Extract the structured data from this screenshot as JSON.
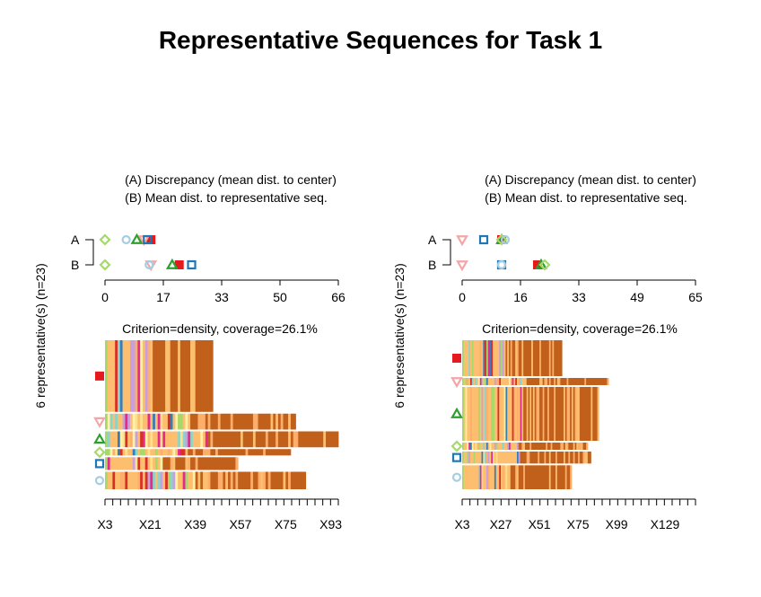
{
  "title": "Representative Sequences for Task 1",
  "chart_data": [
    {
      "type": "sequence_index",
      "legend_lines": [
        "(A) Discrepancy (mean dist. to center)",
        "(B) Mean dist. to representative seq."
      ],
      "dot_rows": [
        "A",
        "B"
      ],
      "dist_ticks": [
        "0",
        "17",
        "33",
        "50",
        "66"
      ],
      "dist_max": 66,
      "ylabel": "6 representative(s) (n=23)",
      "criterion": "Criterion=density, coverage=26.1%",
      "x_ticks": [
        "X3",
        "X21",
        "X39",
        "X57",
        "X75",
        "X93"
      ],
      "n_positions": 93,
      "points": [
        {
          "marker": "square",
          "color": "#e41a1c",
          "A": 13,
          "B": 21
        },
        {
          "marker": "triangle-down",
          "color": "#f4a6a6",
          "A": 11,
          "B": 13
        },
        {
          "marker": "triangle",
          "color": "#2ca02c",
          "A": 9,
          "B": 19
        },
        {
          "marker": "diamond",
          "color": "#a6d96a",
          "A": 0,
          "B": 0
        },
        {
          "marker": "square-open",
          "color": "#1f78b4",
          "A": 12,
          "B": 24.5
        },
        {
          "marker": "circle-open",
          "color": "#a6cee3",
          "A": 6,
          "B": 12.5
        }
      ],
      "sequences": [
        {
          "marker": "square",
          "color": "#e41a1c",
          "length": 43,
          "thickness": 4.5
        },
        {
          "marker": "triangle-down",
          "color": "#f4a6a6",
          "length": 76,
          "thickness": 1
        },
        {
          "marker": "triangle",
          "color": "#2ca02c",
          "length": 93,
          "thickness": 1
        },
        {
          "marker": "diamond",
          "color": "#a6d96a",
          "length": 74,
          "thickness": 0.4
        },
        {
          "marker": "square-open",
          "color": "#1f78b4",
          "length": 53,
          "thickness": 0.8
        },
        {
          "marker": "circle-open",
          "color": "#a6cee3",
          "length": 80,
          "thickness": 1.1
        }
      ]
    },
    {
      "type": "sequence_index",
      "legend_lines": [
        "(A) Discrepancy (mean dist. to center)",
        "(B) Mean dist. to representative seq."
      ],
      "dot_rows": [
        "A",
        "B"
      ],
      "dist_ticks": [
        "0",
        "16",
        "33",
        "49",
        "65"
      ],
      "dist_max": 65,
      "ylabel": "6 representative(s) (n=23)",
      "criterion": "Criterion=density, coverage=26.1%",
      "x_ticks": [
        "X3",
        "X27",
        "X51",
        "X75",
        "X99",
        "X129"
      ],
      "n_positions": 145,
      "points": [
        {
          "marker": "square",
          "color": "#e41a1c",
          "A": 11,
          "B": 21
        },
        {
          "marker": "triangle-down",
          "color": "#f4a6a6",
          "A": 0,
          "B": 0
        },
        {
          "marker": "triangle",
          "color": "#2ca02c",
          "A": 11,
          "B": 22
        },
        {
          "marker": "diamond",
          "color": "#a6d96a",
          "A": 11,
          "B": 23
        },
        {
          "marker": "square-open",
          "color": "#1f78b4",
          "A": 6,
          "B": 11
        },
        {
          "marker": "circle-open",
          "color": "#a6cee3",
          "A": 12,
          "B": 11
        }
      ],
      "sequences": [
        {
          "marker": "square",
          "color": "#e41a1c",
          "length": 62,
          "thickness": 3
        },
        {
          "marker": "triangle-down",
          "color": "#f4a6a6",
          "length": 91,
          "thickness": 0.6
        },
        {
          "marker": "triangle",
          "color": "#2ca02c",
          "length": 85,
          "thickness": 4.5
        },
        {
          "marker": "diamond",
          "color": "#a6d96a",
          "length": 78,
          "thickness": 0.6
        },
        {
          "marker": "square-open",
          "color": "#1f78b4",
          "length": 80,
          "thickness": 1
        },
        {
          "marker": "circle-open",
          "color": "#a6cee3",
          "length": 68,
          "thickness": 2
        }
      ]
    }
  ]
}
